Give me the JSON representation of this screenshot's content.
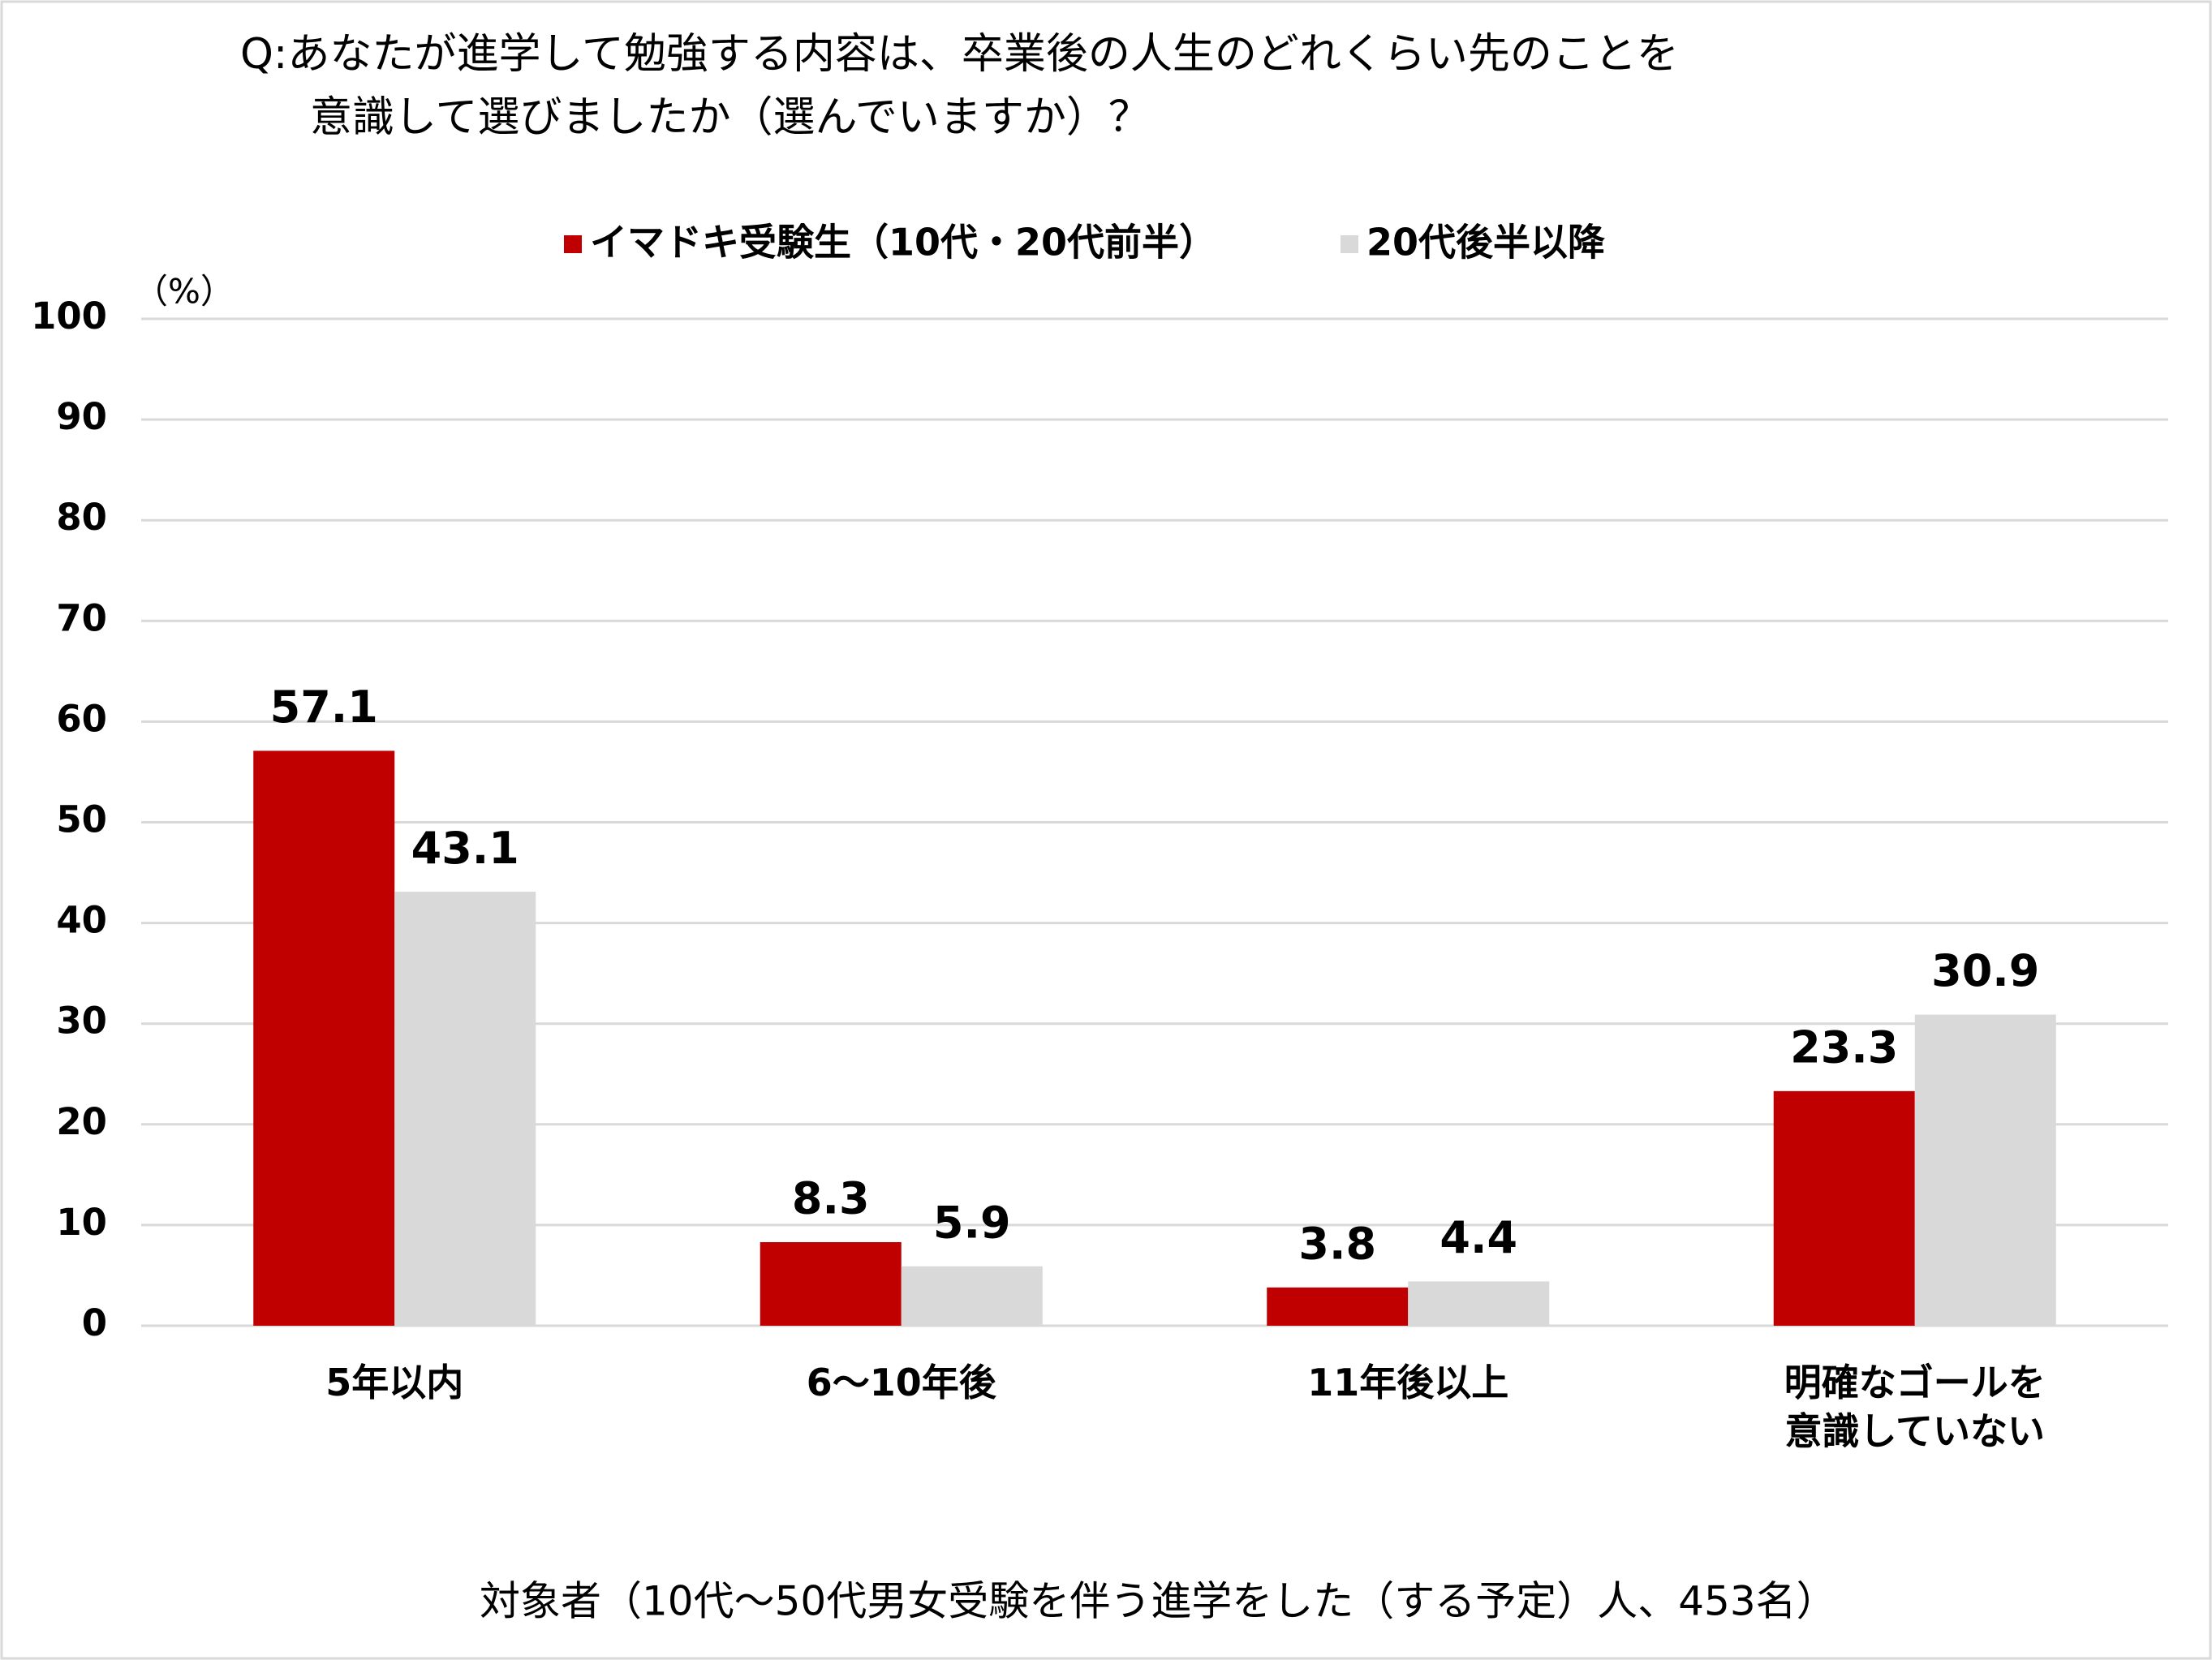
{
  "chart_data": {
    "type": "bar",
    "title": [
      "Q:あなたが進学して勉強する内容は、卒業後の人生のどれくらい先のことを",
      "意識して選びましたか（選んでいますか）？"
    ],
    "y_unit_label": "（%）",
    "footnote": "対象者（10代～50代男女受験を伴う進学をした（する予定）人、453名）",
    "categories": [
      "5年以内",
      "6～10年後",
      "11年後以上",
      "明確なゴールを意識していない"
    ],
    "series": [
      {
        "name": "イマドキ受験生（10代・20代前半）",
        "color": "#c00000",
        "values": [
          57.1,
          8.3,
          3.8,
          23.3
        ]
      },
      {
        "name": "20代後半以降",
        "color": "#d9d9d9",
        "values": [
          43.1,
          5.9,
          4.4,
          30.9
        ]
      }
    ],
    "ylim": [
      0,
      100
    ],
    "yticks": [
      0,
      10,
      20,
      30,
      40,
      50,
      60,
      70,
      80,
      90,
      100
    ],
    "grid": true,
    "legend": "top"
  }
}
